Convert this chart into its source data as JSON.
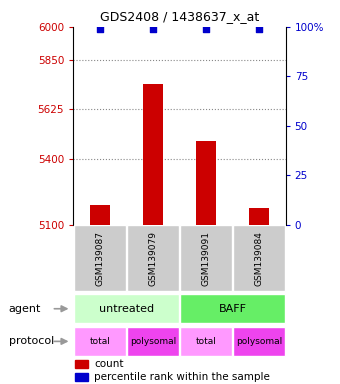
{
  "title": "GDS2408 / 1438637_x_at",
  "samples": [
    "GSM139087",
    "GSM139079",
    "GSM139091",
    "GSM139084"
  ],
  "bar_values": [
    5190,
    5740,
    5480,
    5175
  ],
  "percentile_values": [
    99,
    99,
    99,
    99
  ],
  "ylim_left": [
    5100,
    6000
  ],
  "yticks_left": [
    5100,
    5400,
    5625,
    5850,
    6000
  ],
  "ylim_right": [
    0,
    100
  ],
  "yticks_right": [
    0,
    25,
    50,
    75,
    100
  ],
  "bar_color": "#cc0000",
  "dot_color": "#0000cc",
  "agent_colors": [
    "#ccffcc",
    "#66ee66"
  ],
  "agent_texts": [
    "untreated",
    "BAFF"
  ],
  "proto_colors": [
    "#ff99ff",
    "#ee44ee",
    "#ff99ff",
    "#ee44ee"
  ],
  "proto_texts": [
    "total",
    "polysomal",
    "total",
    "polysomal"
  ],
  "sample_box_color": "#cccccc",
  "left_tick_color": "#cc0000",
  "right_tick_color": "#0000cc",
  "grid_color": "#888888",
  "legend_red_label": "count",
  "legend_blue_label": "percentile rank within the sample"
}
